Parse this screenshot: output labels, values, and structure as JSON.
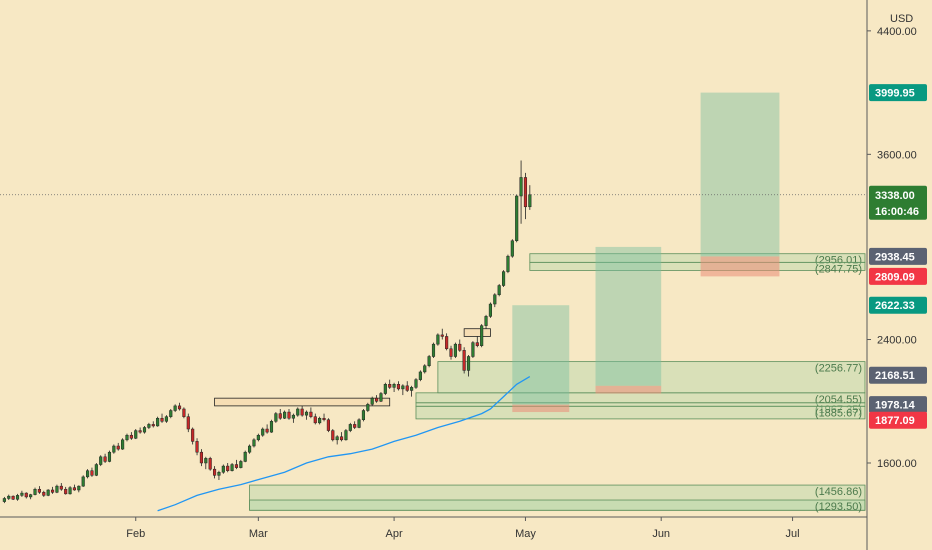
{
  "chart_data": {
    "type": "candlestick",
    "currency": "USD",
    "y_axis": {
      "min": 1250,
      "max": 4600,
      "ticks": [
        "4400.00",
        "3600.00",
        "2400.00",
        "1600.00"
      ],
      "tick_values": [
        4400,
        3600,
        2400,
        1600
      ]
    },
    "x_axis": {
      "labels": [
        "Feb",
        "Mar",
        "Apr",
        "May",
        "Jun",
        "Jul"
      ],
      "label_days": [
        31,
        59,
        90,
        120,
        151,
        181
      ],
      "range_days": [
        0,
        198
      ]
    },
    "current_price": {
      "price": 3338.0,
      "label": "3338.00",
      "countdown": "16:00:46"
    },
    "price_tags": [
      {
        "label": "3999.95",
        "price": 3999.95,
        "color": "#089981"
      },
      {
        "label": "2938.45",
        "price": 2938.45,
        "color": "#5b6272"
      },
      {
        "label": "2809.09",
        "price": 2809.09,
        "color": "#f23645"
      },
      {
        "label": "2622.33",
        "price": 2622.33,
        "color": "#089981"
      },
      {
        "label": "2168.51",
        "price": 2168.51,
        "color": "#5b6272"
      },
      {
        "label": "1978.14",
        "price": 1978.14,
        "color": "#5b6272"
      },
      {
        "label": "1877.09",
        "price": 1877.09,
        "color": "#f23645"
      }
    ],
    "zone_labels": [
      "(2956.01)",
      "(2847.75)",
      "(2256.77)",
      "(2054.55)",
      "(1967.35)",
      "(1885.67)",
      "(1456.86)",
      "(1293.50)"
    ],
    "zones": [
      {
        "top": 2956.01,
        "bottom": 2900,
        "start_day": 121,
        "label_index": 0
      },
      {
        "top": 2900,
        "bottom": 2847.75,
        "start_day": 121,
        "label_index": 1
      },
      {
        "top": 2256.77,
        "bottom": 2054.55,
        "start_day": 100,
        "label_index": 2
      },
      {
        "top": 2054.55,
        "bottom": 1990,
        "start_day": 95,
        "label_index": 3
      },
      {
        "top": 1990,
        "bottom": 1967.35,
        "start_day": 95,
        "label_index": 4
      },
      {
        "top": 1967.35,
        "bottom": 1885.67,
        "start_day": 95,
        "label_index": 5
      },
      {
        "top": 1456.86,
        "bottom": 1293.5,
        "start_day": 57,
        "label_index": 6
      },
      {
        "top": 1360,
        "bottom": 1293.5,
        "start_day": 57,
        "label_index": 7
      }
    ],
    "positions": [
      {
        "start_day": 117,
        "end_day": 130,
        "entry": 1978.14,
        "target": 2622.33,
        "stop": 1930
      },
      {
        "start_day": 136,
        "end_day": 151,
        "entry": 2100,
        "target": 3000,
        "stop": 2050
      },
      {
        "start_day": 160,
        "end_day": 178,
        "entry": 2938.45,
        "target": 3999.95,
        "stop": 2809.09
      }
    ],
    "boxes": [
      {
        "start_day": 49,
        "end_day": 89,
        "top": 2020,
        "bottom": 1970
      },
      {
        "start_day": 106,
        "end_day": 112,
        "top": 2470,
        "bottom": 2420
      }
    ],
    "ma_points": [
      [
        36,
        1290
      ],
      [
        40,
        1330
      ],
      [
        45,
        1390
      ],
      [
        50,
        1430
      ],
      [
        55,
        1460
      ],
      [
        60,
        1500
      ],
      [
        65,
        1540
      ],
      [
        70,
        1600
      ],
      [
        75,
        1640
      ],
      [
        80,
        1660
      ],
      [
        85,
        1690
      ],
      [
        90,
        1740
      ],
      [
        95,
        1780
      ],
      [
        100,
        1830
      ],
      [
        105,
        1870
      ],
      [
        110,
        1920
      ],
      [
        112,
        1950
      ],
      [
        115,
        2030
      ],
      [
        118,
        2110
      ],
      [
        121,
        2160
      ]
    ],
    "candles": [
      [
        1,
        1350,
        1380,
        1340,
        1370
      ],
      [
        2,
        1370,
        1395,
        1360,
        1385
      ],
      [
        3,
        1385,
        1390,
        1360,
        1365
      ],
      [
        4,
        1365,
        1400,
        1355,
        1390
      ],
      [
        5,
        1390,
        1420,
        1380,
        1405
      ],
      [
        6,
        1405,
        1410,
        1370,
        1380
      ],
      [
        7,
        1380,
        1400,
        1365,
        1395
      ],
      [
        8,
        1395,
        1440,
        1390,
        1430
      ],
      [
        9,
        1430,
        1450,
        1400,
        1410
      ],
      [
        10,
        1410,
        1420,
        1380,
        1390
      ],
      [
        11,
        1390,
        1430,
        1385,
        1425
      ],
      [
        12,
        1425,
        1445,
        1400,
        1410
      ],
      [
        13,
        1410,
        1460,
        1405,
        1450
      ],
      [
        14,
        1450,
        1470,
        1420,
        1430
      ],
      [
        15,
        1430,
        1445,
        1395,
        1400
      ],
      [
        16,
        1400,
        1450,
        1395,
        1440
      ],
      [
        17,
        1440,
        1460,
        1420,
        1425
      ],
      [
        18,
        1425,
        1455,
        1410,
        1450
      ],
      [
        19,
        1450,
        1520,
        1445,
        1510
      ],
      [
        20,
        1510,
        1560,
        1500,
        1550
      ],
      [
        21,
        1550,
        1570,
        1510,
        1520
      ],
      [
        22,
        1520,
        1600,
        1515,
        1590
      ],
      [
        23,
        1590,
        1650,
        1580,
        1640
      ],
      [
        24,
        1640,
        1660,
        1600,
        1610
      ],
      [
        25,
        1610,
        1680,
        1605,
        1670
      ],
      [
        26,
        1670,
        1720,
        1660,
        1710
      ],
      [
        27,
        1710,
        1730,
        1680,
        1690
      ],
      [
        28,
        1690,
        1760,
        1685,
        1750
      ],
      [
        29,
        1750,
        1790,
        1740,
        1780
      ],
      [
        30,
        1780,
        1800,
        1750,
        1760
      ],
      [
        31,
        1760,
        1820,
        1755,
        1810
      ],
      [
        32,
        1810,
        1830,
        1790,
        1800
      ],
      [
        33,
        1800,
        1840,
        1790,
        1830
      ],
      [
        34,
        1830,
        1860,
        1820,
        1850
      ],
      [
        35,
        1850,
        1870,
        1830,
        1840
      ],
      [
        36,
        1840,
        1900,
        1835,
        1890
      ],
      [
        37,
        1890,
        1920,
        1860,
        1870
      ],
      [
        38,
        1870,
        1910,
        1860,
        1900
      ],
      [
        39,
        1900,
        1950,
        1890,
        1940
      ],
      [
        40,
        1940,
        1980,
        1930,
        1970
      ],
      [
        41,
        1970,
        1990,
        1940,
        1950
      ],
      [
        42,
        1950,
        1960,
        1890,
        1900
      ],
      [
        43,
        1900,
        1920,
        1800,
        1820
      ],
      [
        44,
        1820,
        1830,
        1720,
        1740
      ],
      [
        45,
        1740,
        1760,
        1650,
        1670
      ],
      [
        46,
        1670,
        1690,
        1580,
        1600
      ],
      [
        47,
        1600,
        1640,
        1560,
        1630
      ],
      [
        48,
        1630,
        1640,
        1550,
        1560
      ],
      [
        49,
        1560,
        1580,
        1500,
        1520
      ],
      [
        50,
        1520,
        1550,
        1490,
        1540
      ],
      [
        51,
        1540,
        1590,
        1530,
        1580
      ],
      [
        52,
        1580,
        1600,
        1540,
        1550
      ],
      [
        53,
        1550,
        1600,
        1545,
        1590
      ],
      [
        54,
        1590,
        1620,
        1560,
        1570
      ],
      [
        55,
        1570,
        1620,
        1565,
        1610
      ],
      [
        56,
        1610,
        1680,
        1605,
        1670
      ],
      [
        57,
        1670,
        1720,
        1660,
        1710
      ],
      [
        58,
        1710,
        1760,
        1700,
        1750
      ],
      [
        59,
        1750,
        1790,
        1740,
        1780
      ],
      [
        60,
        1780,
        1830,
        1770,
        1820
      ],
      [
        61,
        1820,
        1850,
        1790,
        1800
      ],
      [
        62,
        1800,
        1880,
        1795,
        1870
      ],
      [
        63,
        1870,
        1930,
        1860,
        1920
      ],
      [
        64,
        1920,
        1950,
        1880,
        1890
      ],
      [
        65,
        1890,
        1940,
        1885,
        1930
      ],
      [
        66,
        1930,
        1950,
        1880,
        1890
      ],
      [
        67,
        1890,
        1920,
        1860,
        1910
      ],
      [
        68,
        1910,
        1960,
        1900,
        1950
      ],
      [
        69,
        1950,
        1970,
        1900,
        1910
      ],
      [
        70,
        1910,
        1940,
        1880,
        1930
      ],
      [
        71,
        1930,
        1960,
        1890,
        1900
      ],
      [
        72,
        1900,
        1920,
        1850,
        1860
      ],
      [
        73,
        1860,
        1900,
        1850,
        1890
      ],
      [
        74,
        1890,
        1920,
        1870,
        1880
      ],
      [
        75,
        1880,
        1890,
        1800,
        1810
      ],
      [
        76,
        1810,
        1820,
        1740,
        1750
      ],
      [
        77,
        1750,
        1780,
        1720,
        1770
      ],
      [
        78,
        1770,
        1800,
        1740,
        1750
      ],
      [
        79,
        1750,
        1820,
        1745,
        1810
      ],
      [
        80,
        1810,
        1860,
        1800,
        1850
      ],
      [
        81,
        1850,
        1870,
        1820,
        1830
      ],
      [
        82,
        1830,
        1890,
        1825,
        1880
      ],
      [
        83,
        1880,
        1950,
        1870,
        1940
      ],
      [
        84,
        1940,
        1990,
        1930,
        1980
      ],
      [
        85,
        1980,
        2030,
        1970,
        2020
      ],
      [
        86,
        2020,
        2040,
        1990,
        2000
      ],
      [
        87,
        2000,
        2060,
        1995,
        2050
      ],
      [
        88,
        2050,
        2120,
        2040,
        2110
      ],
      [
        89,
        2110,
        2140,
        2080,
        2090
      ],
      [
        90,
        2090,
        2120,
        2060,
        2110
      ],
      [
        91,
        2110,
        2130,
        2070,
        2080
      ],
      [
        92,
        2080,
        2110,
        2040,
        2100
      ],
      [
        93,
        2100,
        2130,
        2060,
        2070
      ],
      [
        94,
        2070,
        2100,
        2030,
        2090
      ],
      [
        95,
        2090,
        2150,
        2080,
        2140
      ],
      [
        96,
        2140,
        2200,
        2130,
        2190
      ],
      [
        97,
        2190,
        2240,
        2180,
        2230
      ],
      [
        98,
        2230,
        2300,
        2220,
        2290
      ],
      [
        99,
        2290,
        2380,
        2280,
        2370
      ],
      [
        100,
        2370,
        2440,
        2360,
        2430
      ],
      [
        101,
        2430,
        2470,
        2400,
        2420
      ],
      [
        102,
        2420,
        2440,
        2330,
        2340
      ],
      [
        103,
        2340,
        2360,
        2270,
        2290
      ],
      [
        104,
        2290,
        2380,
        2280,
        2370
      ],
      [
        105,
        2370,
        2400,
        2320,
        2330
      ],
      [
        106,
        2330,
        2350,
        2180,
        2200
      ],
      [
        107,
        2200,
        2300,
        2160,
        2290
      ],
      [
        108,
        2290,
        2390,
        2280,
        2380
      ],
      [
        109,
        2380,
        2420,
        2350,
        2360
      ],
      [
        110,
        2360,
        2500,
        2350,
        2490
      ],
      [
        111,
        2490,
        2560,
        2470,
        2550
      ],
      [
        112,
        2550,
        2640,
        2540,
        2630
      ],
      [
        113,
        2630,
        2700,
        2610,
        2690
      ],
      [
        114,
        2690,
        2760,
        2680,
        2750
      ],
      [
        115,
        2750,
        2850,
        2740,
        2840
      ],
      [
        116,
        2840,
        2950,
        2830,
        2940
      ],
      [
        117,
        2940,
        3050,
        2930,
        3040
      ],
      [
        118,
        3040,
        3340,
        3030,
        3330
      ],
      [
        119,
        3330,
        3560,
        3150,
        3450
      ],
      [
        120,
        3450,
        3480,
        3180,
        3260
      ],
      [
        121,
        3260,
        3400,
        3240,
        3338
      ]
    ]
  }
}
